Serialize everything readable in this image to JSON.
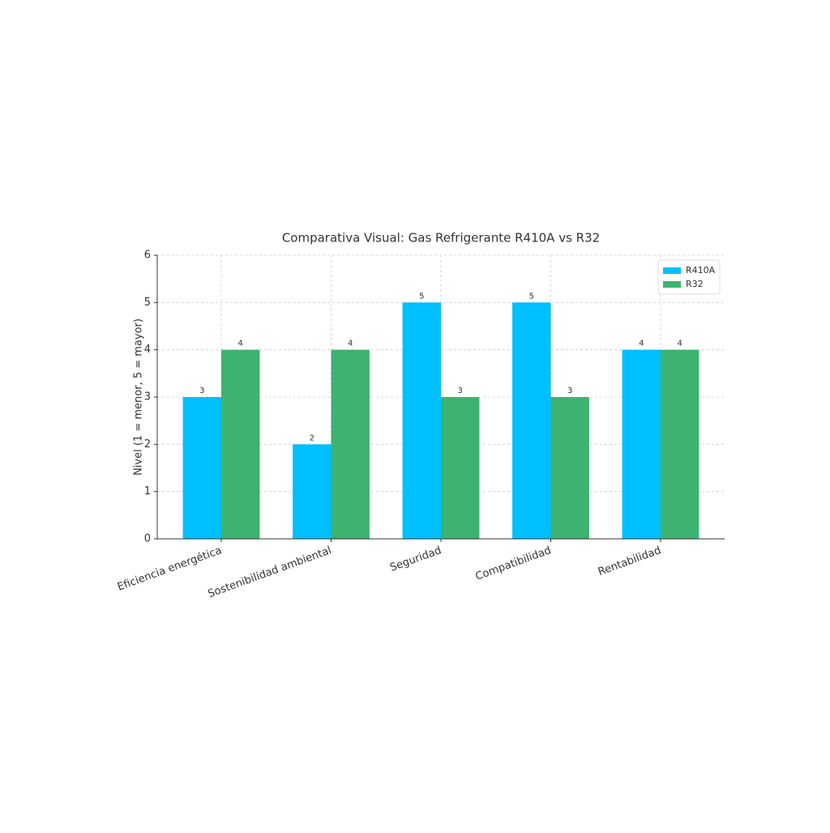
{
  "chart_data": {
    "type": "bar",
    "title": "Comparativa Visual: Gas Refrigerante R410A vs R32",
    "y_label": "Nivel (1 = menor, 5 = mayor)",
    "categories": [
      "Eficiencia energética",
      "Sostenibilidad ambiental",
      "Seguridad",
      "Compatibilidad",
      "Rentabilidad"
    ],
    "series": [
      {
        "name": "R410A",
        "color": "#00bfff",
        "values": [
          3,
          2,
          5,
          5,
          4
        ]
      },
      {
        "name": "R32",
        "color": "#3cb371",
        "values": [
          4,
          4,
          3,
          3,
          4
        ]
      }
    ],
    "ylim": [
      0,
      6
    ],
    "yticks": [
      0,
      1,
      2,
      3,
      4,
      5,
      6
    ],
    "grid": true,
    "legend": "upper right"
  }
}
